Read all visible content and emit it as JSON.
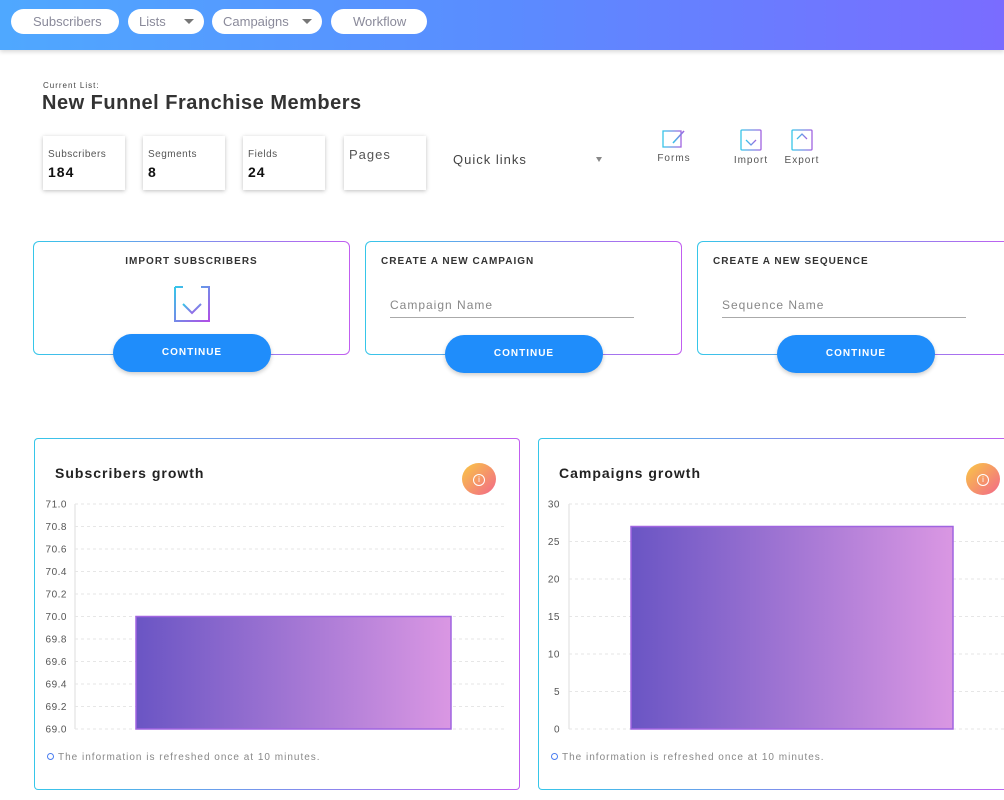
{
  "nav": {
    "items": [
      {
        "label": "Subscribers",
        "dropdown": false
      },
      {
        "label": "Lists",
        "dropdown": true
      },
      {
        "label": "Campaigns",
        "dropdown": true
      },
      {
        "label": "Workflow",
        "dropdown": false
      }
    ]
  },
  "header": {
    "current_label": "Current List:",
    "title": "New Funnel Franchise Members"
  },
  "stats": [
    {
      "label": "Subscribers",
      "value": "184"
    },
    {
      "label": "Segments",
      "value": "8"
    },
    {
      "label": "Fields",
      "value": "24"
    },
    {
      "label": "Pages",
      "value": ""
    }
  ],
  "quick_links": {
    "label": "Quick links"
  },
  "tools": [
    {
      "label": "Forms",
      "icon": "edit-form-icon"
    },
    {
      "label": "Import",
      "icon": "import-icon"
    },
    {
      "label": "Export",
      "icon": "export-icon"
    }
  ],
  "actions": [
    {
      "title": "IMPORT SUBSCRIBERS",
      "icon": "download-icon",
      "button": "CONTINUE"
    },
    {
      "title": "CREATE A NEW CAMPAIGN",
      "placeholder": "Campaign Name",
      "button": "CONTINUE"
    },
    {
      "title": "CREATE A NEW SEQUENCE",
      "placeholder": "Sequence Name",
      "button": "CONTINUE"
    }
  ],
  "charts_meta": {
    "refresh_note": "The information is refreshed once at 10 minutes.",
    "colors": {
      "bar_start": "#6a55c4",
      "bar_end": "#da97e3",
      "bar_stroke": "#a064e0"
    }
  },
  "chart_data": [
    {
      "type": "bar",
      "title": "Subscribers growth",
      "categories": [
        ""
      ],
      "values": [
        70.0
      ],
      "ylim": [
        69.0,
        71.0
      ],
      "yticks": [
        "69.0",
        "69.2",
        "69.4",
        "69.6",
        "69.8",
        "70.0",
        "70.2",
        "70.4",
        "70.6",
        "70.8",
        "71.0"
      ],
      "grid": true
    },
    {
      "type": "bar",
      "title": "Campaigns growth",
      "categories": [
        ""
      ],
      "values": [
        27
      ],
      "ylim": [
        0,
        30
      ],
      "yticks": [
        "0",
        "5",
        "10",
        "15",
        "20",
        "25",
        "30"
      ],
      "grid": true
    }
  ]
}
